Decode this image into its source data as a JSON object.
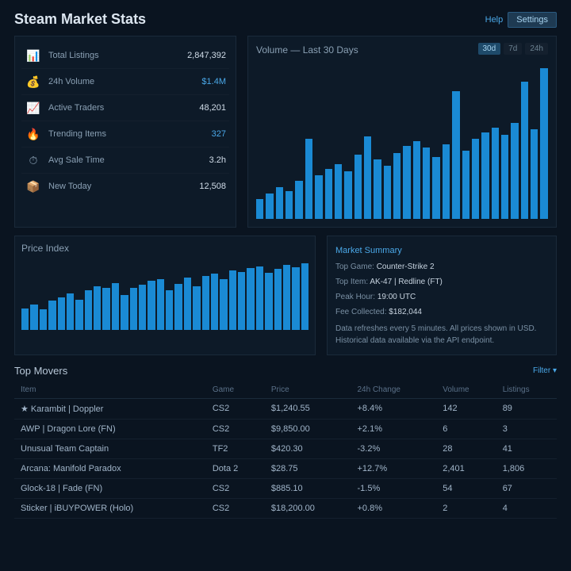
{
  "header": {
    "title": "Steam Market Stats",
    "help_link": "Help",
    "settings_btn": "Settings"
  },
  "stats": {
    "rows": [
      {
        "icon": "📊",
        "icon_color": "#4aa8e8",
        "label": "Total Listings",
        "value": "2,847,392",
        "highlight": false
      },
      {
        "icon": "💰",
        "icon_color": "#5aba5a",
        "label": "24h Volume",
        "value": "$1.4M",
        "highlight": true
      },
      {
        "icon": "📈",
        "icon_color": "#4aa8e8",
        "label": "Active Traders",
        "value": "48,201",
        "highlight": false
      },
      {
        "icon": "🔥",
        "icon_color": "#d86060",
        "label": "Trending Items",
        "value": "327",
        "highlight": true
      },
      {
        "icon": "⏱",
        "icon_color": "#8aa0b4",
        "label": "Avg Sale Time",
        "value": "3.2h",
        "highlight": false
      },
      {
        "icon": "📦",
        "icon_color": "#c8a84a",
        "label": "New Today",
        "value": "12,508",
        "highlight": false
      }
    ]
  },
  "main_chart": {
    "title": "Volume — Last 30 Days",
    "toggle": [
      "30d",
      "7d",
      "24h"
    ],
    "active_toggle": 0,
    "bar_color": "#1a8ad4",
    "values": [
      22,
      28,
      35,
      30,
      42,
      88,
      48,
      55,
      60,
      52,
      70,
      90,
      65,
      58,
      72,
      80,
      85,
      78,
      68,
      82,
      140,
      75,
      88,
      95,
      100,
      92,
      105,
      150,
      98,
      165
    ]
  },
  "mini_chart": {
    "title": "Price Index",
    "bar_color": "#1a8ad4",
    "values": [
      30,
      35,
      28,
      40,
      45,
      50,
      42,
      55,
      60,
      58,
      65,
      48,
      58,
      62,
      68,
      70,
      55,
      64,
      72,
      60,
      75,
      78,
      70,
      82,
      80,
      85,
      88,
      79,
      84,
      90,
      86,
      92
    ]
  },
  "info": {
    "title": "Market Summary",
    "lines": [
      {
        "k": "Top Game:",
        "v": "Counter-Strike 2"
      },
      {
        "k": "Top Item:",
        "v": "AK-47 | Redline (FT)"
      },
      {
        "k": "Peak Hour:",
        "v": "19:00 UTC"
      },
      {
        "k": "Fee Collected:",
        "v": "$182,044"
      }
    ],
    "note": "Data refreshes every 5 minutes. All prices shown in USD. Historical data available via the API endpoint."
  },
  "table": {
    "section_title": "Top Movers",
    "filter_label": "Filter ▾",
    "columns": [
      "Item",
      "Game",
      "Price",
      "24h Change",
      "Volume",
      "Listings"
    ],
    "rows": [
      [
        "★ Karambit | Doppler",
        "CS2",
        "$1,240.55",
        "+8.4%",
        "142",
        "89"
      ],
      [
        "AWP | Dragon Lore (FN)",
        "CS2",
        "$9,850.00",
        "+2.1%",
        "6",
        "3"
      ],
      [
        "Unusual Team Captain",
        "TF2",
        "$420.30",
        "-3.2%",
        "28",
        "41"
      ],
      [
        "Arcana: Manifold Paradox",
        "Dota 2",
        "$28.75",
        "+12.7%",
        "2,401",
        "1,806"
      ],
      [
        "Glock-18 | Fade (FN)",
        "CS2",
        "$885.10",
        "-1.5%",
        "54",
        "67"
      ],
      [
        "Sticker | iBUYPOWER (Holo)",
        "CS2",
        "$18,200.00",
        "+0.8%",
        "2",
        "4"
      ]
    ],
    "change_dir": [
      "up",
      "up",
      "down",
      "up",
      "down",
      "up"
    ]
  }
}
